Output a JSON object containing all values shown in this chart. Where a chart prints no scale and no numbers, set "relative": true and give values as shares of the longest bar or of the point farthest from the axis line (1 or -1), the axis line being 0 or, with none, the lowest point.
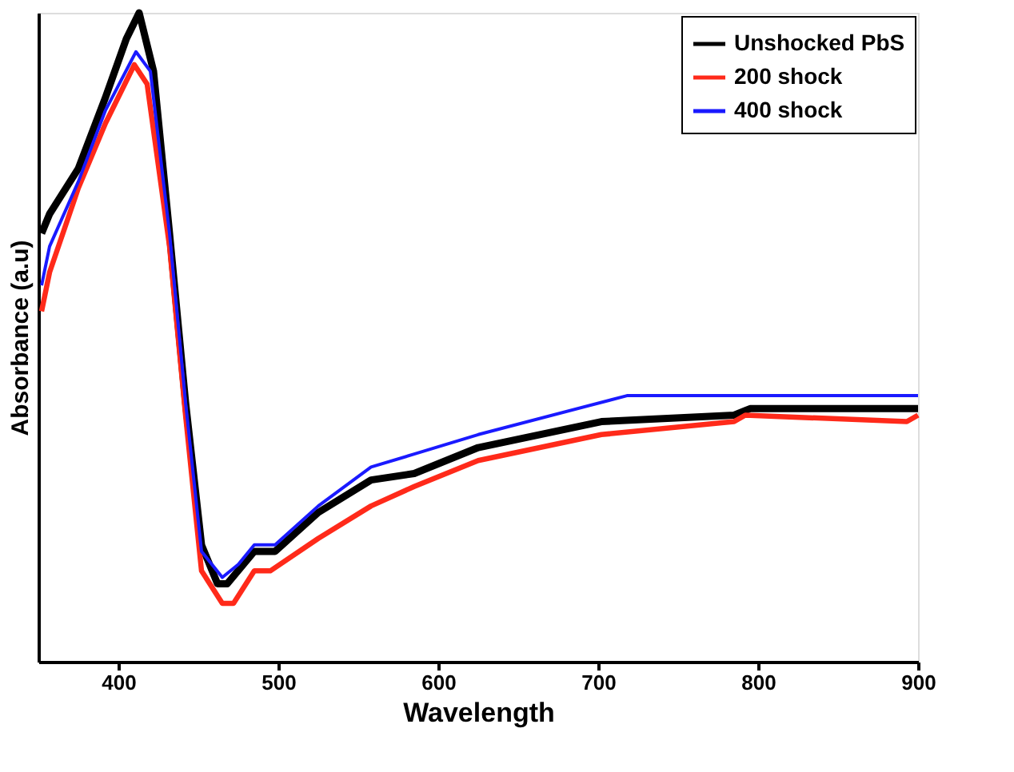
{
  "chart_data": {
    "type": "line",
    "xlabel": "Wavelength",
    "ylabel": "Absorbance (a.u)",
    "relative": true,
    "xlim": [
      350,
      900
    ],
    "xticks": [
      400,
      500,
      600,
      700,
      800,
      900
    ],
    "tick_labels": "x",
    "grid": false,
    "legend": "top right",
    "marker": "none",
    "line_style": "solid",
    "series": [
      {
        "name": "Unshocked PbS",
        "color": "#000000",
        "x": [
          352,
          357,
          375,
          392,
          405,
          413,
          422,
          432,
          442,
          452,
          462,
          468,
          485,
          498,
          525,
          558,
          585,
          625,
          702,
          785,
          795,
          900
        ],
        "values": [
          0.66,
          0.69,
          0.76,
          0.87,
          0.96,
          1.0,
          0.91,
          0.66,
          0.4,
          0.18,
          0.12,
          0.12,
          0.17,
          0.17,
          0.23,
          0.28,
          0.29,
          0.33,
          0.37,
          0.38,
          0.39,
          0.39
        ]
      },
      {
        "name": "200 shock",
        "color": "#ff2a1a",
        "x": [
          352,
          357,
          375,
          392,
          410,
          418,
          432,
          442,
          452,
          465,
          472,
          485,
          495,
          525,
          558,
          585,
          625,
          702,
          785,
          792,
          893,
          900
        ],
        "values": [
          0.54,
          0.6,
          0.73,
          0.83,
          0.92,
          0.89,
          0.64,
          0.38,
          0.14,
          0.09,
          0.09,
          0.14,
          0.14,
          0.19,
          0.24,
          0.27,
          0.31,
          0.35,
          0.37,
          0.38,
          0.37,
          0.38
        ]
      },
      {
        "name": "400 shock",
        "color": "#1a1aff",
        "x": [
          352,
          357,
          375,
          392,
          411,
          420,
          432,
          442,
          452,
          465,
          475,
          485,
          498,
          525,
          558,
          585,
          625,
          718,
          798,
          900
        ],
        "values": [
          0.58,
          0.64,
          0.74,
          0.85,
          0.94,
          0.91,
          0.66,
          0.4,
          0.17,
          0.13,
          0.15,
          0.18,
          0.18,
          0.24,
          0.3,
          0.32,
          0.35,
          0.41,
          0.41,
          0.41
        ]
      }
    ]
  }
}
